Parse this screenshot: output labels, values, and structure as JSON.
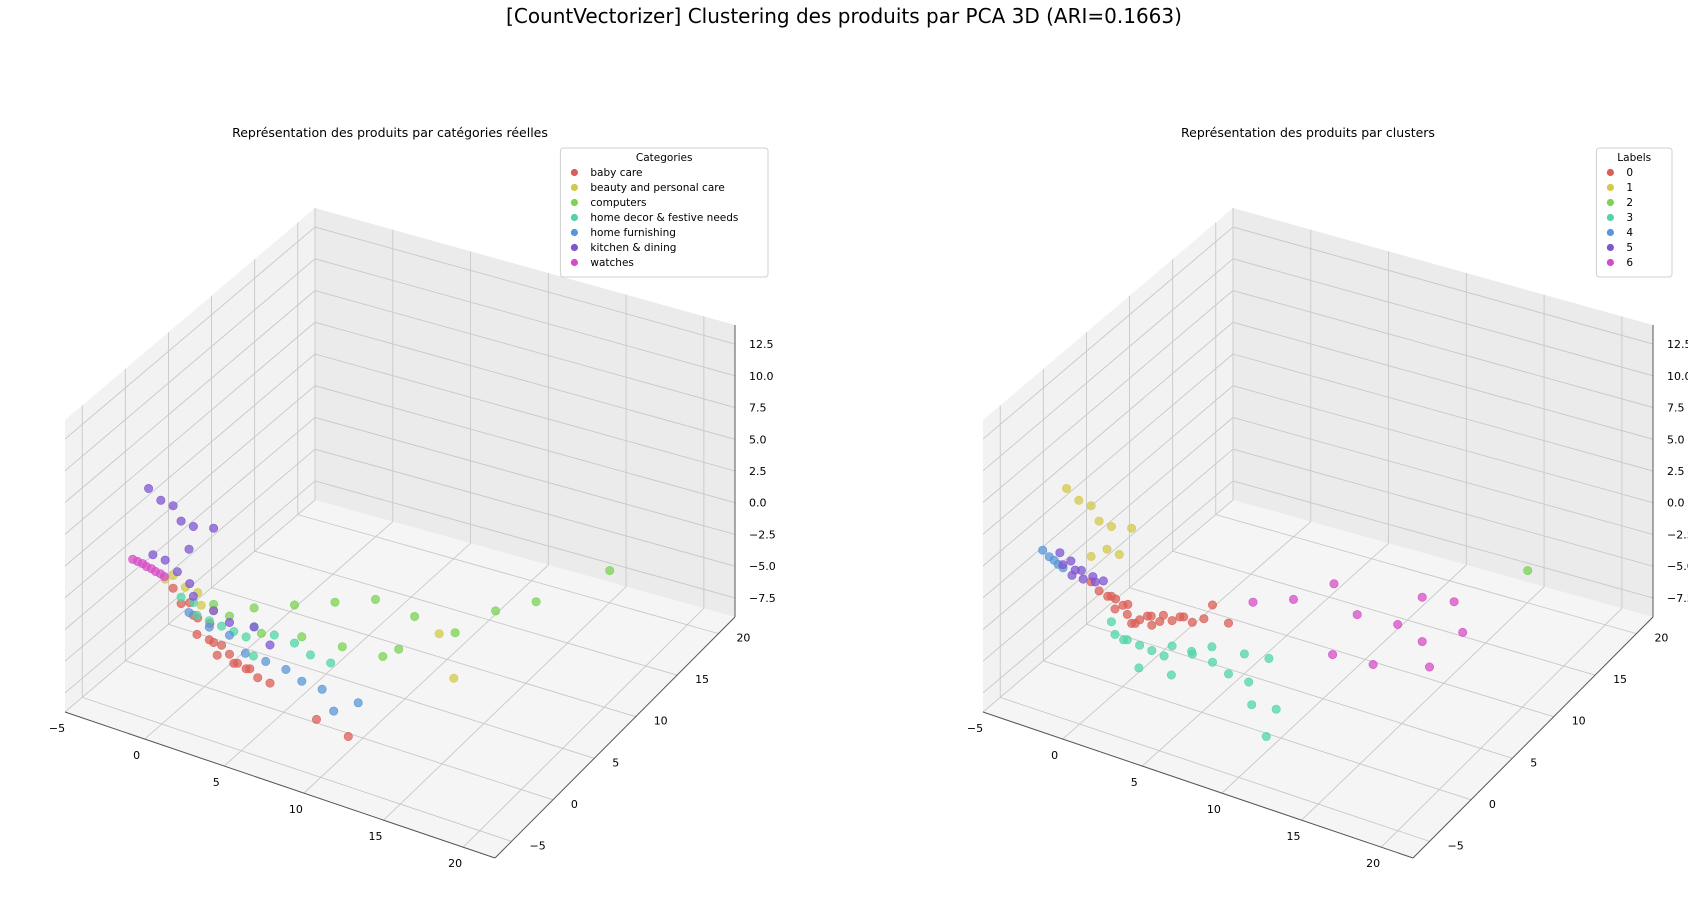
{
  "suptitle": "[CountVectorizer] Clustering des produits par PCA 3D (ARI=0.1663)",
  "chart_data": [
    {
      "type": "scatter",
      "title": "Représentation des produits par catégories réelles",
      "legend_title": "Categories",
      "legend_placement": "top-right",
      "xlim": [
        -5,
        22
      ],
      "ylim": [
        -7,
        22
      ],
      "zlim": [
        -9,
        14
      ],
      "xticks": [
        "−5",
        "0",
        "5",
        "10",
        "15",
        "20"
      ],
      "yticks": [
        "−5",
        "0",
        "5",
        "10",
        "15",
        "20"
      ],
      "zticks": [
        "−7.5",
        "−5.0",
        "−2.5",
        "0.0",
        "2.5",
        "5.0",
        "7.5",
        "10.0",
        "12.5"
      ],
      "series": [
        {
          "name": "baby care",
          "color": "#db5f57",
          "points": [
            [
              -1.5,
              0,
              -3
            ],
            [
              -1,
              0.5,
              -4
            ],
            [
              -0.5,
              0,
              -5
            ],
            [
              0,
              0.5,
              -5.5
            ],
            [
              0.5,
              1,
              -6
            ],
            [
              1,
              1,
              -6.5
            ],
            [
              1.5,
              1,
              -7
            ],
            [
              2,
              1.5,
              -7.5
            ],
            [
              2.5,
              1.5,
              -8
            ],
            [
              3,
              2,
              -8.5
            ],
            [
              -1,
              1,
              -4.5
            ],
            [
              -0.5,
              1.5,
              -5
            ],
            [
              0,
              1,
              -6
            ],
            [
              0.5,
              0.5,
              -6.5
            ],
            [
              1,
              1.5,
              -7.5
            ],
            [
              1.5,
              2,
              -8
            ],
            [
              7,
              0,
              -8.5
            ],
            [
              9,
              0,
              -9
            ],
            [
              -2,
              0,
              -2
            ],
            [
              -1.5,
              1,
              -3.5
            ]
          ]
        },
        {
          "name": "beauty and personal care",
          "color": "#d3c94b",
          "points": [
            [
              -2,
              0,
              -1
            ],
            [
              -1.5,
              0.5,
              -2
            ],
            [
              -1,
              1,
              -2.5
            ],
            [
              -0.5,
              0.5,
              -3
            ],
            [
              0,
              1,
              -3.5
            ],
            [
              -2.5,
              0,
              -1.5
            ],
            [
              14,
              3,
              -4
            ],
            [
              12,
              5,
              -2.5
            ]
          ]
        },
        {
          "name": "computers",
          "color": "#7bd253",
          "points": [
            [
              0,
              1,
              -3
            ],
            [
              1,
              1,
              -3.5
            ],
            [
              2,
              2,
              -3
            ],
            [
              4,
              3,
              -2.5
            ],
            [
              6,
              4,
              -2
            ],
            [
              8,
              5,
              -1.5
            ],
            [
              5,
              2,
              -4
            ],
            [
              7,
              3,
              -4.5
            ],
            [
              9,
              4,
              -5
            ],
            [
              10,
              4,
              -4
            ],
            [
              11,
              4,
              -1
            ],
            [
              13,
              5,
              -2
            ],
            [
              15,
              6,
              0
            ],
            [
              17,
              7,
              1
            ],
            [
              20,
              10,
              3
            ],
            [
              3,
              1,
              -4
            ]
          ]
        },
        {
          "name": "home decor & festive needs",
          "color": "#52d5a6",
          "points": [
            [
              -1,
              0.5,
              -3
            ],
            [
              -0.5,
              0,
              -3.5
            ],
            [
              0,
              0.5,
              -4
            ],
            [
              0.5,
              1,
              -4.5
            ],
            [
              1,
              1.5,
              -5
            ],
            [
              1.5,
              2,
              -5.5
            ],
            [
              2,
              2,
              -4.5
            ],
            [
              3,
              2.5,
              -5
            ],
            [
              4,
              3,
              -5.5
            ],
            [
              5,
              3,
              -6
            ],
            [
              6,
              3.5,
              -6.5
            ],
            [
              -1.5,
              0,
              -2.5
            ],
            [
              2.5,
              1,
              -6
            ]
          ]
        },
        {
          "name": "home furnishing",
          "color": "#5a97d8",
          "points": [
            [
              -1,
              0,
              -3.5
            ],
            [
              0,
              0.5,
              -4.5
            ],
            [
              1,
              1,
              -5
            ],
            [
              2,
              1,
              -6
            ],
            [
              3,
              1.5,
              -6.5
            ],
            [
              4,
              2,
              -7
            ],
            [
              5,
              2,
              -7.5
            ],
            [
              6,
              2.5,
              -8
            ],
            [
              7,
              2,
              -9
            ],
            [
              8,
              3,
              -8.5
            ]
          ]
        },
        {
          "name": "kitchen & dining",
          "color": "#8055d2",
          "points": [
            [
              -3,
              -1,
              6
            ],
            [
              -2.5,
              -0.5,
              5
            ],
            [
              -2,
              0,
              4.5
            ],
            [
              -1.5,
              0,
              3.5
            ],
            [
              -1,
              0.5,
              3
            ],
            [
              0,
              1,
              3
            ],
            [
              -1,
              0,
              1.5
            ],
            [
              -2.5,
              0,
              0
            ],
            [
              -2,
              0.5,
              -1
            ],
            [
              -1.5,
              1,
              -2
            ],
            [
              -1,
              0.5,
              -2.5
            ],
            [
              0,
              1,
              -3.5
            ],
            [
              1,
              1,
              -4
            ],
            [
              2,
              2,
              -4.5
            ],
            [
              3,
              2,
              -5.5
            ],
            [
              -3,
              -0.5,
              0.5
            ]
          ]
        },
        {
          "name": "watches",
          "color": "#d54dc6",
          "points": [
            [
              -4,
              -1,
              0
            ],
            [
              -3.8,
              -0.8,
              -0.2
            ],
            [
              -3.6,
              -0.6,
              -0.4
            ],
            [
              -3.4,
              -0.5,
              -0.6
            ],
            [
              -3.2,
              -0.3,
              -0.8
            ],
            [
              -3,
              -0.2,
              -1
            ],
            [
              -2.8,
              0,
              -1.2
            ],
            [
              -2.6,
              0.1,
              -1.4
            ]
          ]
        }
      ]
    },
    {
      "type": "scatter",
      "title": "Représentation des produits par clusters",
      "legend_title": "Labels",
      "legend_placement": "top-right",
      "xlim": [
        -5,
        22
      ],
      "ylim": [
        -7,
        22
      ],
      "zlim": [
        -9,
        14
      ],
      "xticks": [
        "−5",
        "0",
        "5",
        "10",
        "15",
        "20"
      ],
      "yticks": [
        "−5",
        "0",
        "5",
        "10",
        "15",
        "20"
      ],
      "zticks": [
        "−7.5",
        "−5.0",
        "−2.5",
        "0.0",
        "2.5",
        "5.0",
        "7.5",
        "10.0",
        "12.5"
      ],
      "series": [
        {
          "name": "0",
          "color": "#db5f57",
          "points": [
            [
              -1.5,
              0,
              -2
            ],
            [
              -1,
              0.5,
              -2.5
            ],
            [
              -0.5,
              0,
              -3
            ],
            [
              0,
              0.5,
              -3.5
            ],
            [
              0.5,
              1,
              -4
            ],
            [
              1,
              1,
              -3.5
            ],
            [
              1.5,
              1.5,
              -4
            ],
            [
              2,
              2,
              -4
            ],
            [
              2.5,
              2,
              -3.5
            ],
            [
              3,
              2.5,
              -4
            ],
            [
              -1,
              1,
              -3
            ],
            [
              -0.5,
              1.5,
              -3.5
            ],
            [
              0,
              1,
              -4.5
            ],
            [
              0.5,
              0.5,
              -4
            ],
            [
              1,
              1.5,
              -4.5
            ],
            [
              1.5,
              0.5,
              -3
            ],
            [
              2,
              1,
              -3
            ],
            [
              3,
              1.5,
              -3
            ],
            [
              4,
              2,
              -3
            ],
            [
              4,
              3,
              -2.5
            ],
            [
              5,
              3,
              -3.5
            ],
            [
              -2,
              0,
              -1.5
            ],
            [
              -1.5,
              1,
              -3
            ],
            [
              0,
              0,
              -2.5
            ]
          ]
        },
        {
          "name": "1",
          "color": "#d3c94b",
          "points": [
            [
              -3,
              -1,
              6
            ],
            [
              -2.5,
              -0.5,
              5
            ],
            [
              -2,
              0,
              4.5
            ],
            [
              -1.5,
              0,
              3.5
            ],
            [
              -1,
              0.5,
              3
            ],
            [
              0,
              1,
              3
            ],
            [
              -1,
              0,
              1.5
            ],
            [
              -0.5,
              0.5,
              1
            ],
            [
              -2,
              0,
              0.5
            ]
          ]
        },
        {
          "name": "2",
          "color": "#7bd253",
          "points": [
            [
              20,
              10,
              3
            ]
          ]
        },
        {
          "name": "3",
          "color": "#52d5a6",
          "points": [
            [
              -1,
              0.5,
              -4.5
            ],
            [
              -0.5,
              0,
              -5
            ],
            [
              0,
              0.5,
              -5.5
            ],
            [
              0.5,
              1,
              -6
            ],
            [
              1,
              1.5,
              -6.5
            ],
            [
              1.5,
              2,
              -7
            ],
            [
              2,
              2,
              -6
            ],
            [
              3,
              2.5,
              -6.5
            ],
            [
              4,
              3,
              -7
            ],
            [
              5,
              3,
              -7.5
            ],
            [
              6,
              3.5,
              -8
            ],
            [
              7,
              2,
              -8.5
            ],
            [
              8,
              3,
              -9
            ],
            [
              9,
              0,
              -9
            ],
            [
              2.5,
              1,
              -7.5
            ],
            [
              3.5,
              1.5,
              -5.5
            ],
            [
              4.5,
              2,
              -5
            ],
            [
              6,
              3,
              -5.5
            ],
            [
              -0.5,
              1,
              -6
            ],
            [
              1,
              0,
              -7
            ],
            [
              7,
              4,
              -6
            ]
          ]
        },
        {
          "name": "4",
          "color": "#5a97d8",
          "points": [
            [
              -4.5,
              -1,
              0.5
            ],
            [
              -4.2,
              -0.8,
              0
            ],
            [
              -4,
              -0.6,
              -0.3
            ],
            [
              -3.8,
              -0.5,
              -0.6
            ],
            [
              -3.6,
              -0.3,
              -0.9
            ]
          ]
        },
        {
          "name": "5",
          "color": "#8055d2",
          "points": [
            [
              -3.5,
              -0.5,
              -0.5
            ],
            [
              -3,
              0,
              -1
            ],
            [
              -2.5,
              0,
              -1.5
            ],
            [
              -2,
              0.5,
              -1.8
            ],
            [
              -3,
              -0.5,
              0
            ],
            [
              -2.5,
              -0.2,
              -0.7
            ],
            [
              -2,
              0.2,
              -1.2
            ],
            [
              -3.2,
              0,
              -1.5
            ],
            [
              -1.5,
              0.5,
              -1.5
            ],
            [
              -3.8,
              -0.3,
              0.2
            ]
          ]
        },
        {
          "name": "6",
          "color": "#d54dc6",
          "points": [
            [
              6,
              4,
              -2
            ],
            [
              8,
              5,
              -1.5
            ],
            [
              10,
              6,
              0
            ],
            [
              12,
              5,
              -1
            ],
            [
              14,
              6,
              -1.5
            ],
            [
              15,
              7,
              0.5
            ],
            [
              17,
              7,
              1
            ],
            [
              11,
              4,
              -4
            ],
            [
              13,
              5,
              -4.5
            ],
            [
              16,
              6,
              -4
            ],
            [
              15,
              7,
              -3
            ],
            [
              17,
              8,
              -2
            ]
          ]
        }
      ]
    }
  ]
}
